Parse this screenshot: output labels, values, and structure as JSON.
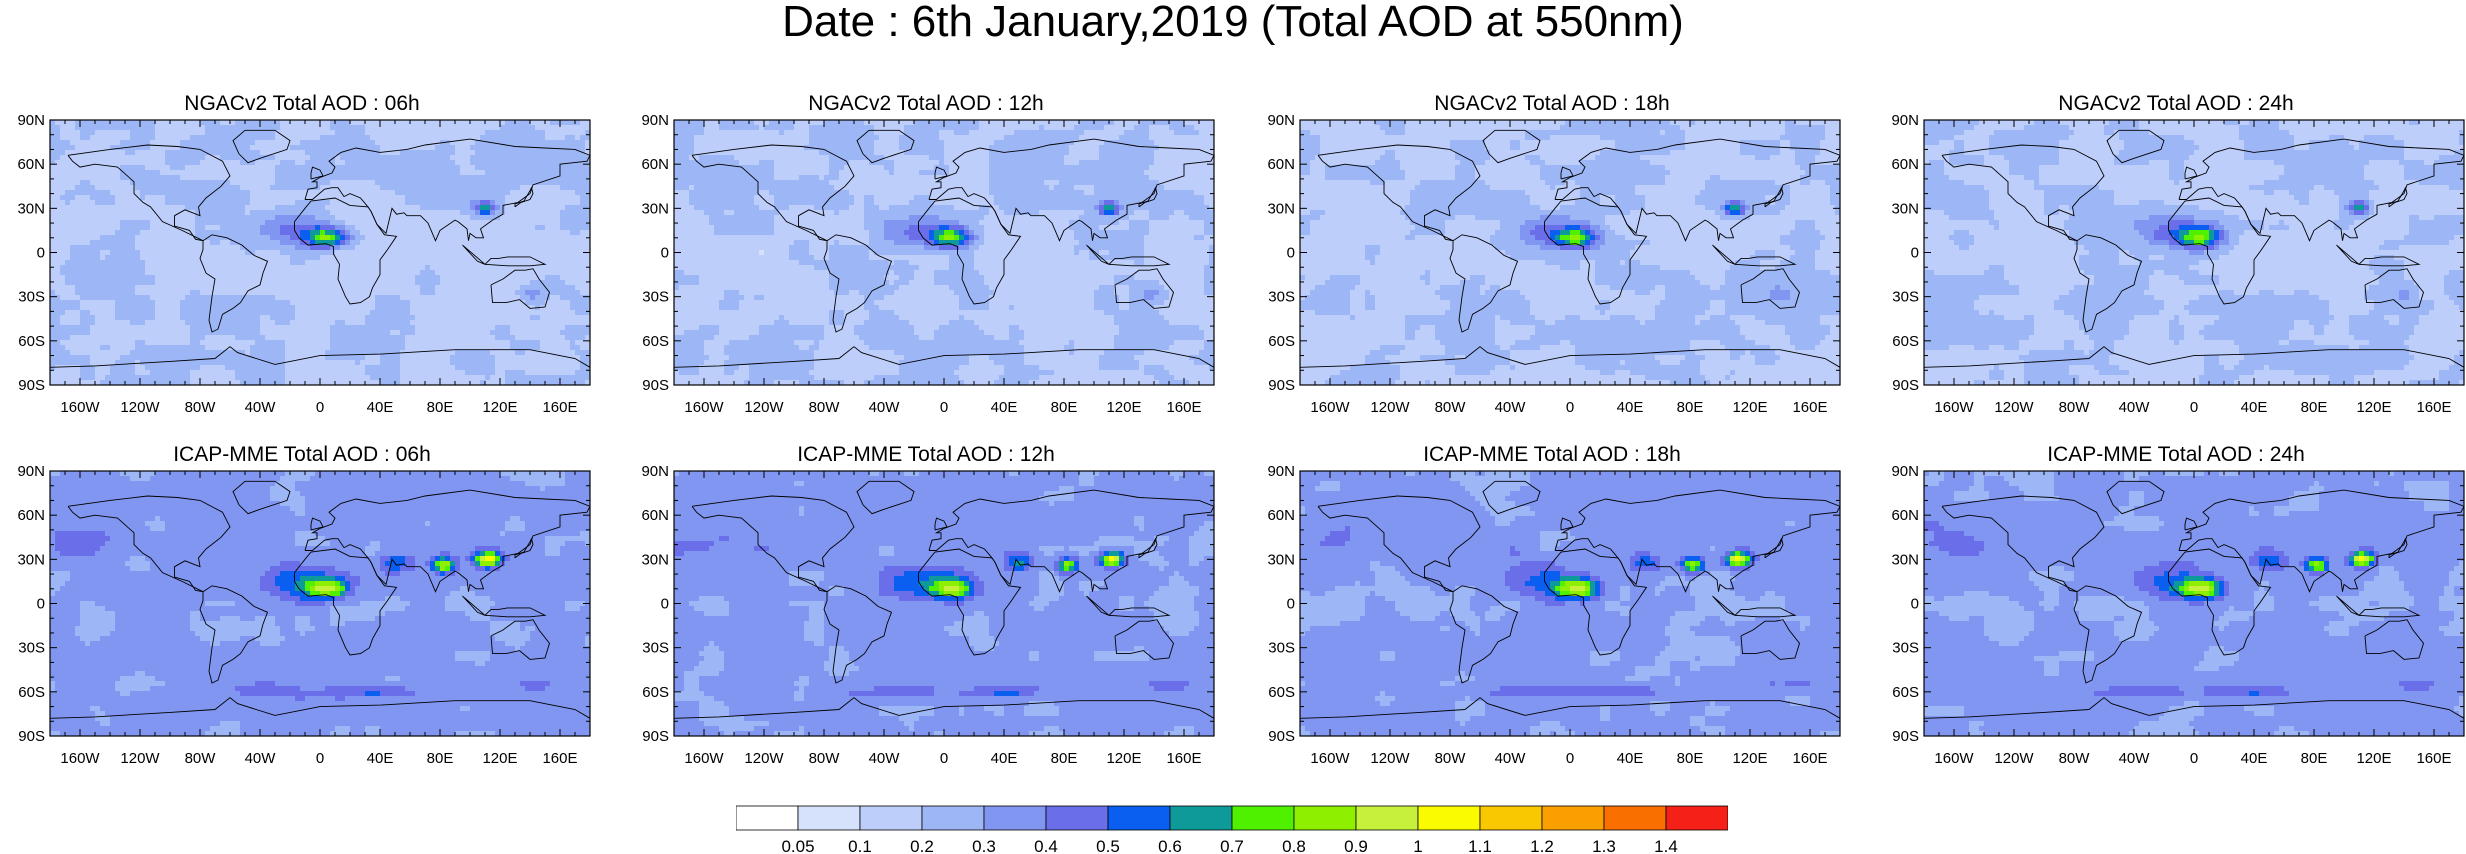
{
  "title": "Date : 6th January,2019 (Total AOD at 550nm)",
  "panels": [
    {
      "title": "NGACv2 Total AOD : 06h",
      "model": "NGACv2",
      "hour": "06h"
    },
    {
      "title": "NGACv2 Total AOD : 12h",
      "model": "NGACv2",
      "hour": "12h"
    },
    {
      "title": "NGACv2 Total AOD : 18h",
      "model": "NGACv2",
      "hour": "18h"
    },
    {
      "title": "NGACv2 Total AOD : 24h",
      "model": "NGACv2",
      "hour": "24h"
    },
    {
      "title": "ICAP-MME Total AOD : 06h",
      "model": "ICAP-MME",
      "hour": "06h"
    },
    {
      "title": "ICAP-MME Total AOD : 12h",
      "model": "ICAP-MME",
      "hour": "12h"
    },
    {
      "title": "ICAP-MME Total AOD : 18h",
      "model": "ICAP-MME",
      "hour": "18h"
    },
    {
      "title": "ICAP-MME Total AOD : 24h",
      "model": "ICAP-MME",
      "hour": "24h"
    }
  ],
  "lat_labels": [
    "90N",
    "60N",
    "30N",
    "0",
    "30S",
    "60S",
    "90S"
  ],
  "lon_labels": [
    "160W",
    "120W",
    "80W",
    "40W",
    "0",
    "40E",
    "80E",
    "120E",
    "160E"
  ],
  "colorbar": {
    "labels": [
      "0.05",
      "0.1",
      "0.2",
      "0.3",
      "0.4",
      "0.5",
      "0.6",
      "0.7",
      "0.8",
      "0.9",
      "1",
      "1.1",
      "1.2",
      "1.3",
      "1.4"
    ],
    "colors": [
      "#ffffff",
      "#d6e2fb",
      "#bdcefa",
      "#9db6f6",
      "#8196f0",
      "#6a6ee8",
      "#0a5ef0",
      "#0f9a9a",
      "#4ff000",
      "#8ef000",
      "#c6f03c",
      "#fafa00",
      "#fac800",
      "#fa9f00",
      "#fa7000",
      "#f52018"
    ]
  }
}
